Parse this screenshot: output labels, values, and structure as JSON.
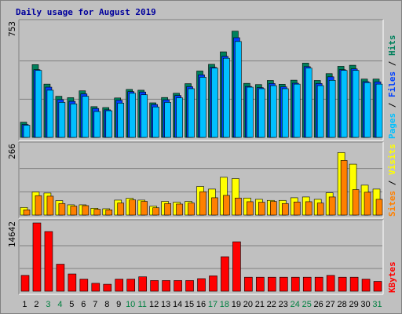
{
  "title": "Daily usage for August 2019",
  "colors": {
    "background": "#c0c0c0",
    "hits": "#00805c",
    "files": "#0040ff",
    "pages": "#00c0ff",
    "visits": "#ffff00",
    "sites": "#ff8000",
    "kbytes": "#ff0000",
    "title": "#00009c",
    "weekend": "#008040"
  },
  "chart_data": [
    {
      "type": "bar",
      "ymax_label": "753",
      "ylim": [
        0,
        753
      ],
      "right_labels": [
        {
          "text": "Pages",
          "color": "#00c0ff"
        },
        {
          "text": "Files",
          "color": "#0040ff"
        },
        {
          "text": "Hits",
          "color": "#00805c"
        }
      ],
      "categories": [
        "1",
        "2",
        "3",
        "4",
        "5",
        "6",
        "7",
        "8",
        "9",
        "10",
        "11",
        "12",
        "13",
        "14",
        "15",
        "16",
        "17",
        "18",
        "19",
        "20",
        "21",
        "22",
        "23",
        "24",
        "25",
        "26",
        "27",
        "28",
        "29",
        "30",
        "31"
      ],
      "series": [
        {
          "name": "Hits",
          "values": [
            100,
            478,
            350,
            270,
            261,
            306,
            202,
            196,
            259,
            315,
            310,
            227,
            262,
            290,
            353,
            436,
            480,
            562,
            698,
            355,
            347,
            374,
            349,
            376,
            488,
            374,
            419,
            467,
            474,
            383,
            383
          ]
        },
        {
          "name": "Files",
          "values": [
            85,
            445,
            330,
            248,
            237,
            286,
            190,
            181,
            244,
            301,
            298,
            216,
            247,
            275,
            333,
            411,
            460,
            533,
            655,
            335,
            327,
            354,
            332,
            356,
            465,
            354,
            398,
            445,
            450,
            366,
            365
          ]
        },
        {
          "name": "Pages",
          "values": [
            80,
            440,
            310,
            230,
            220,
            270,
            170,
            175,
            225,
            290,
            280,
            200,
            230,
            260,
            320,
            395,
            455,
            520,
            630,
            330,
            320,
            340,
            320,
            350,
            455,
            340,
            375,
            440,
            440,
            360,
            350
          ]
        }
      ]
    },
    {
      "type": "bar",
      "ymax_label": "266",
      "ylim": [
        0,
        266
      ],
      "right_labels": [
        {
          "text": "Sites",
          "color": "#ff8000"
        },
        {
          "text": "Visits",
          "color": "#ffff00"
        }
      ],
      "categories": [
        "1",
        "2",
        "3",
        "4",
        "5",
        "6",
        "7",
        "8",
        "9",
        "10",
        "11",
        "12",
        "13",
        "14",
        "15",
        "16",
        "17",
        "18",
        "19",
        "20",
        "21",
        "22",
        "23",
        "24",
        "25",
        "26",
        "27",
        "28",
        "29",
        "30",
        "31"
      ],
      "series": [
        {
          "name": "Visits",
          "values": [
            29,
            88,
            84,
            55,
            39,
            39,
            26,
            24,
            57,
            64,
            57,
            34,
            52,
            49,
            52,
            109,
            99,
            144,
            139,
            65,
            60,
            56,
            56,
            66,
            69,
            60,
            85,
            238,
            194,
            114,
            99
          ]
        },
        {
          "name": "Sites",
          "values": [
            20,
            74,
            72,
            44,
            34,
            36,
            22,
            20,
            46,
            58,
            52,
            28,
            44,
            42,
            46,
            89,
            66,
            75,
            65,
            51,
            49,
            52,
            44,
            50,
            51,
            46,
            69,
            208,
            97,
            87,
            60
          ]
        }
      ]
    },
    {
      "type": "bar",
      "ymax_label": "14642",
      "ylim": [
        0,
        14642
      ],
      "right_labels": [
        {
          "text": "KBytes",
          "color": "#ff0000"
        }
      ],
      "categories": [
        "1",
        "2",
        "3",
        "4",
        "5",
        "6",
        "7",
        "8",
        "9",
        "10",
        "11",
        "12",
        "13",
        "14",
        "15",
        "16",
        "17",
        "18",
        "19",
        "20",
        "21",
        "22",
        "23",
        "24",
        "25",
        "26",
        "27",
        "28",
        "29",
        "30",
        "31"
      ],
      "series": [
        {
          "name": "KBytes",
          "values": [
            3400,
            14642,
            12800,
            5800,
            3700,
            2600,
            1700,
            1500,
            2600,
            2600,
            3100,
            2300,
            2300,
            2300,
            2300,
            2700,
            3300,
            7400,
            10600,
            3000,
            3000,
            3000,
            3000,
            3000,
            3000,
            3000,
            3400,
            3000,
            3000,
            2600,
            2100
          ]
        }
      ]
    }
  ],
  "x_ticks": [
    {
      "text": "1",
      "weekend": false
    },
    {
      "text": "2",
      "weekend": false
    },
    {
      "text": "3",
      "weekend": true
    },
    {
      "text": "4",
      "weekend": true
    },
    {
      "text": "5",
      "weekend": false
    },
    {
      "text": "6",
      "weekend": false
    },
    {
      "text": "7",
      "weekend": false
    },
    {
      "text": "8",
      "weekend": false
    },
    {
      "text": "9",
      "weekend": false
    },
    {
      "text": "10",
      "weekend": true
    },
    {
      "text": "11",
      "weekend": true
    },
    {
      "text": "12",
      "weekend": false
    },
    {
      "text": "13",
      "weekend": false
    },
    {
      "text": "14",
      "weekend": false
    },
    {
      "text": "15",
      "weekend": false
    },
    {
      "text": "16",
      "weekend": false
    },
    {
      "text": "17",
      "weekend": true
    },
    {
      "text": "18",
      "weekend": true
    },
    {
      "text": "19",
      "weekend": false
    },
    {
      "text": "20",
      "weekend": false
    },
    {
      "text": "21",
      "weekend": false
    },
    {
      "text": "22",
      "weekend": false
    },
    {
      "text": "23",
      "weekend": false
    },
    {
      "text": "24",
      "weekend": true
    },
    {
      "text": "25",
      "weekend": true
    },
    {
      "text": "26",
      "weekend": false
    },
    {
      "text": "27",
      "weekend": false
    },
    {
      "text": "28",
      "weekend": false
    },
    {
      "text": "29",
      "weekend": false
    },
    {
      "text": "30",
      "weekend": false
    },
    {
      "text": "31",
      "weekend": true
    }
  ]
}
